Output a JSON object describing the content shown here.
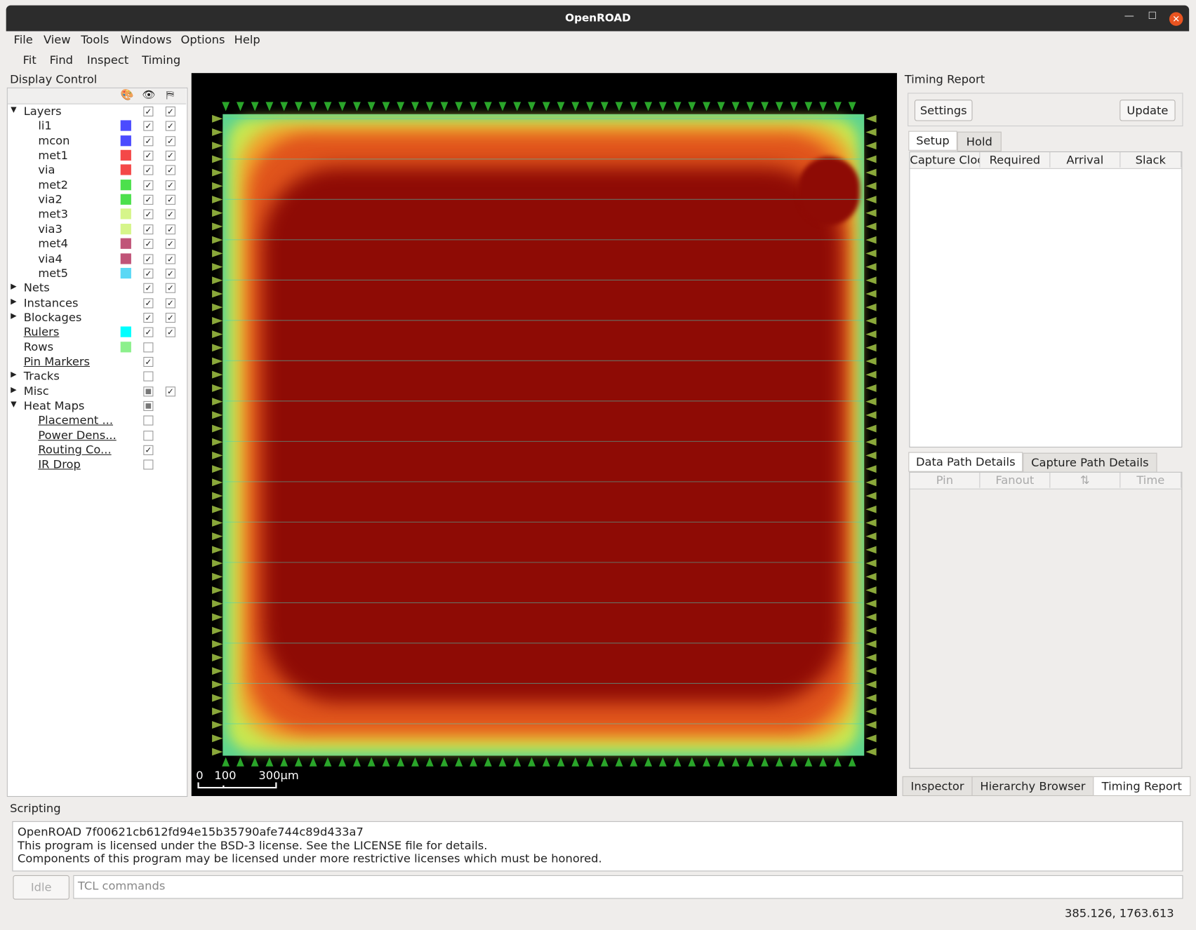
{
  "window": {
    "title": "OpenROAD"
  },
  "menu": [
    "File",
    "View",
    "Tools",
    "Windows",
    "Options",
    "Help"
  ],
  "toolbar": [
    "Fit",
    "Find",
    "Inspect",
    "Timing"
  ],
  "display_control": {
    "title": "Display Control",
    "items": [
      {
        "label": "Layers",
        "level": 0,
        "expander": "open",
        "visible": true,
        "selectable": true
      },
      {
        "label": "li1",
        "level": 1,
        "color": "#4b4bff",
        "visible": true,
        "selectable": true
      },
      {
        "label": "mcon",
        "level": 1,
        "color": "#4b4bff",
        "visible": true,
        "selectable": true
      },
      {
        "label": "met1",
        "level": 1,
        "color": "#f44848",
        "visible": true,
        "selectable": true
      },
      {
        "label": "via",
        "level": 1,
        "color": "#f44848",
        "visible": true,
        "selectable": true
      },
      {
        "label": "met2",
        "level": 1,
        "color": "#4ce04c",
        "visible": true,
        "selectable": true
      },
      {
        "label": "via2",
        "level": 1,
        "color": "#4ce04c",
        "visible": true,
        "selectable": true
      },
      {
        "label": "met3",
        "level": 1,
        "color": "#d6f58a",
        "visible": true,
        "selectable": true
      },
      {
        "label": "via3",
        "level": 1,
        "color": "#d6f58a",
        "visible": true,
        "selectable": true
      },
      {
        "label": "met4",
        "level": 1,
        "color": "#c05478",
        "visible": true,
        "selectable": true
      },
      {
        "label": "via4",
        "level": 1,
        "color": "#c05478",
        "visible": true,
        "selectable": true
      },
      {
        "label": "met5",
        "level": 1,
        "color": "#5ad8f5",
        "visible": true,
        "selectable": true
      },
      {
        "label": "Nets",
        "level": 0,
        "expander": "closed",
        "visible": true,
        "selectable": true
      },
      {
        "label": "Instances",
        "level": 0,
        "expander": "closed",
        "visible": true,
        "selectable": true
      },
      {
        "label": "Blockages",
        "level": 0,
        "expander": "closed",
        "visible": true,
        "selectable": true
      },
      {
        "label": "Rulers",
        "level": 0,
        "link": true,
        "color": "#00ffff",
        "visible": true,
        "selectable": true
      },
      {
        "label": "Rows",
        "level": 0,
        "color": "#8cf08c",
        "visible": false
      },
      {
        "label": "Pin Markers",
        "level": 0,
        "link": true,
        "visible": true
      },
      {
        "label": "Tracks",
        "level": 0,
        "expander": "closed",
        "visible": false
      },
      {
        "label": "Misc",
        "level": 0,
        "expander": "closed",
        "visible": "partial",
        "selectable": true
      },
      {
        "label": "Heat Maps",
        "level": 0,
        "expander": "open",
        "visible": "partial"
      },
      {
        "label": "Placement ...",
        "level": 1,
        "link": true,
        "visible": false
      },
      {
        "label": "Power Dens...",
        "level": 1,
        "link": true,
        "visible": false
      },
      {
        "label": "Routing Co...",
        "level": 1,
        "link": true,
        "visible": true
      },
      {
        "label": "IR Drop",
        "level": 1,
        "link": true,
        "visible": false
      }
    ]
  },
  "layout_view": {
    "scale_labels": [
      "0",
      "100",
      "300µm"
    ]
  },
  "timing_report": {
    "title": "Timing Report",
    "buttons": [
      "Settings",
      "Update"
    ],
    "tabs": [
      "Setup",
      "Hold"
    ],
    "columns": [
      "Capture Clock",
      "Required",
      "Arrival",
      "Slack"
    ],
    "detail_tabs": [
      "Data Path Details",
      "Capture Path Details"
    ],
    "detail_columns": [
      "Pin",
      "Fanout",
      "⇅",
      "Time"
    ]
  },
  "dock_tabs": [
    "Inspector",
    "Hierarchy Browser",
    "Timing Report"
  ],
  "scripting": {
    "title": "Scripting",
    "output": [
      "OpenROAD 7f00621cb612fd94e15b35790afe744c89d433a7",
      "This program is licensed under the BSD-3 license. See the LICENSE file for details.",
      "Components of this program may be licensed under more restrictive licenses which must be honored."
    ],
    "status_button": "Idle",
    "placeholder": "TCL commands"
  },
  "status_bar": "385.126, 1763.613"
}
